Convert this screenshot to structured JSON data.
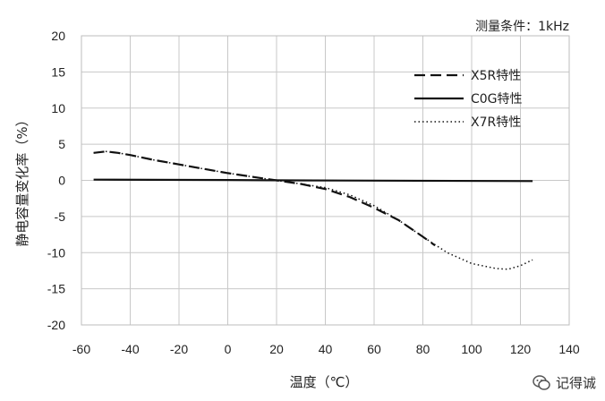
{
  "chart_data": {
    "type": "line",
    "title": "",
    "note": "测量条件：1kHz",
    "xlabel": "温度（℃）",
    "ylabel": "静电容量变化率（%）",
    "xlim": [
      -60,
      140
    ],
    "ylim": [
      -20,
      20
    ],
    "xticks": [
      -60,
      -40,
      -20,
      0,
      20,
      40,
      60,
      80,
      100,
      120,
      140
    ],
    "yticks": [
      -20,
      -15,
      -10,
      -5,
      0,
      5,
      10,
      15,
      20
    ],
    "grid": true,
    "legend_position": "top-right",
    "series": [
      {
        "name": "X5R特性",
        "style": "dashed",
        "x": [
          -55,
          -50,
          -45,
          -40,
          -30,
          -20,
          -10,
          0,
          10,
          20,
          30,
          40,
          50,
          60,
          70,
          80,
          85
        ],
        "y": [
          3.8,
          4.0,
          3.8,
          3.5,
          2.8,
          2.2,
          1.6,
          1.0,
          0.5,
          0.0,
          -0.5,
          -1.2,
          -2.3,
          -3.8,
          -5.5,
          -7.8,
          -9.0
        ]
      },
      {
        "name": "C0G特性",
        "style": "solid",
        "x": [
          -55,
          0,
          25,
          125
        ],
        "y": [
          0.1,
          0.05,
          0.0,
          -0.1
        ]
      },
      {
        "name": "X7R特性",
        "style": "dotted",
        "x": [
          -55,
          -50,
          -45,
          -40,
          -30,
          -20,
          -10,
          0,
          10,
          20,
          30,
          40,
          50,
          60,
          70,
          80,
          90,
          100,
          110,
          115,
          120,
          125
        ],
        "y": [
          3.8,
          4.0,
          3.8,
          3.5,
          2.8,
          2.2,
          1.6,
          1.0,
          0.5,
          0.0,
          -0.5,
          -1.0,
          -2.0,
          -3.5,
          -5.5,
          -7.8,
          -10.0,
          -11.5,
          -12.2,
          -12.3,
          -11.8,
          -11.0
        ]
      }
    ]
  },
  "watermark": {
    "text": "记得诚",
    "icon": "wechat-icon"
  }
}
